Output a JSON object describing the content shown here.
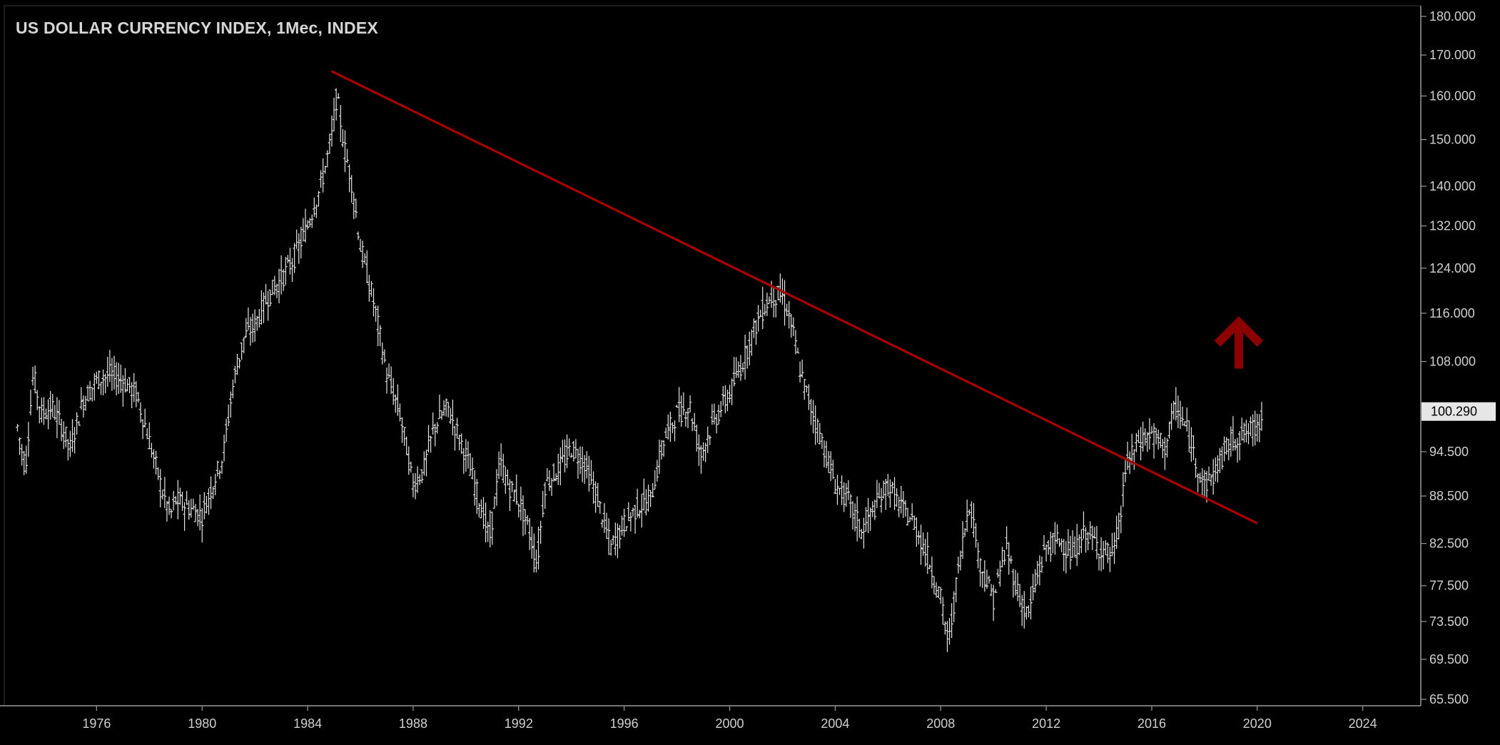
{
  "title": "US DOLLAR CURRENCY INDEX, 1Mec, INDEX",
  "colors": {
    "background": "#000000",
    "bars": "#e6e6e6",
    "trendline": "#a80000",
    "arrow": "#8b0000",
    "axis_text": "#cfcfcf",
    "axis_line": "#9a9a9a"
  },
  "icons": {
    "arrow": "up-arrow-icon"
  },
  "chart_data": {
    "type": "ohlc",
    "interval": "1 month",
    "x_range": [
      1972.5,
      2026.2
    ],
    "y_range": [
      65.5,
      180
    ],
    "y_scale": "log",
    "x_ticks": [
      "1976",
      "1980",
      "1984",
      "1988",
      "1992",
      "1996",
      "2000",
      "2004",
      "2008",
      "2012",
      "2016",
      "2020",
      "2024"
    ],
    "y_ticks": [
      "180.000",
      "170.000",
      "160.000",
      "150.000",
      "140.000",
      "132.000",
      "124.000",
      "116.000",
      "108.000",
      "100.290",
      "94.500",
      "88.500",
      "82.500",
      "77.500",
      "73.500",
      "69.500",
      "65.500"
    ],
    "last_price": "100.290",
    "trend_line": {
      "start": {
        "x": 1984.9,
        "y": 166
      },
      "end": {
        "x": 2020.0,
        "y": 85
      }
    },
    "arrow": {
      "x": 2019.3,
      "y": 111,
      "direction": "up"
    },
    "price_path": [
      [
        1973.0,
        98
      ],
      [
        1973.3,
        92
      ],
      [
        1973.6,
        106
      ],
      [
        1973.9,
        100
      ],
      [
        1974.3,
        101
      ],
      [
        1974.7,
        98
      ],
      [
        1975.0,
        95
      ],
      [
        1975.5,
        102
      ],
      [
        1976.0,
        105
      ],
      [
        1976.5,
        106
      ],
      [
        1977.0,
        105
      ],
      [
        1977.5,
        103
      ],
      [
        1978.0,
        96
      ],
      [
        1978.5,
        89
      ],
      [
        1978.8,
        86
      ],
      [
        1979.0,
        88
      ],
      [
        1979.5,
        87
      ],
      [
        1980.0,
        86
      ],
      [
        1980.4,
        90
      ],
      [
        1980.8,
        94
      ],
      [
        1981.2,
        105
      ],
      [
        1981.6,
        112
      ],
      [
        1982.0,
        114
      ],
      [
        1982.5,
        119
      ],
      [
        1983.0,
        122
      ],
      [
        1983.5,
        126
      ],
      [
        1984.0,
        132
      ],
      [
        1984.5,
        140
      ],
      [
        1984.9,
        150
      ],
      [
        1985.1,
        160
      ],
      [
        1985.4,
        148
      ],
      [
        1985.7,
        140
      ],
      [
        1986.0,
        128
      ],
      [
        1986.5,
        118
      ],
      [
        1987.0,
        106
      ],
      [
        1987.5,
        100
      ],
      [
        1988.0,
        90
      ],
      [
        1988.4,
        92
      ],
      [
        1988.8,
        98
      ],
      [
        1989.3,
        101
      ],
      [
        1989.7,
        97
      ],
      [
        1990.0,
        94
      ],
      [
        1990.5,
        88
      ],
      [
        1990.9,
        83
      ],
      [
        1991.3,
        93
      ],
      [
        1991.6,
        90
      ],
      [
        1992.0,
        88
      ],
      [
        1992.4,
        84
      ],
      [
        1992.7,
        80
      ],
      [
        1993.0,
        90
      ],
      [
        1993.5,
        92
      ],
      [
        1994.0,
        95
      ],
      [
        1994.5,
        93
      ],
      [
        1995.0,
        88
      ],
      [
        1995.5,
        82
      ],
      [
        1996.0,
        85
      ],
      [
        1996.5,
        87
      ],
      [
        1997.0,
        88
      ],
      [
        1997.5,
        96
      ],
      [
        1998.0,
        100
      ],
      [
        1998.5,
        101
      ],
      [
        1998.9,
        94
      ],
      [
        1999.3,
        98
      ],
      [
        1999.7,
        101
      ],
      [
        2000.0,
        103
      ],
      [
        2000.5,
        108
      ],
      [
        2000.9,
        113
      ],
      [
        2001.3,
        117
      ],
      [
        2001.6,
        119
      ],
      [
        2002.0,
        119
      ],
      [
        2002.3,
        115
      ],
      [
        2002.7,
        106
      ],
      [
        2003.0,
        102
      ],
      [
        2003.5,
        96
      ],
      [
        2004.0,
        90
      ],
      [
        2004.5,
        88
      ],
      [
        2005.0,
        84
      ],
      [
        2005.5,
        87
      ],
      [
        2006.0,
        90
      ],
      [
        2006.5,
        87
      ],
      [
        2007.0,
        85
      ],
      [
        2007.5,
        81
      ],
      [
        2008.0,
        76
      ],
      [
        2008.3,
        71
      ],
      [
        2008.7,
        80
      ],
      [
        2009.1,
        88
      ],
      [
        2009.5,
        80
      ],
      [
        2010.0,
        76
      ],
      [
        2010.5,
        82
      ],
      [
        2010.9,
        77
      ],
      [
        2011.3,
        74
      ],
      [
        2011.7,
        79
      ],
      [
        2012.0,
        82
      ],
      [
        2012.5,
        83
      ],
      [
        2013.0,
        81
      ],
      [
        2013.5,
        84
      ],
      [
        2014.0,
        82
      ],
      [
        2014.5,
        81
      ],
      [
        2014.8,
        85
      ],
      [
        2015.0,
        92
      ],
      [
        2015.5,
        96
      ],
      [
        2016.0,
        97
      ],
      [
        2016.5,
        95
      ],
      [
        2016.9,
        101
      ],
      [
        2017.3,
        98
      ],
      [
        2017.7,
        93
      ],
      [
        2018.0,
        90
      ],
      [
        2018.3,
        91
      ],
      [
        2018.7,
        94
      ],
      [
        2019.0,
        96
      ],
      [
        2019.5,
        97
      ],
      [
        2020.0,
        98
      ],
      [
        2020.2,
        100.3
      ]
    ]
  }
}
